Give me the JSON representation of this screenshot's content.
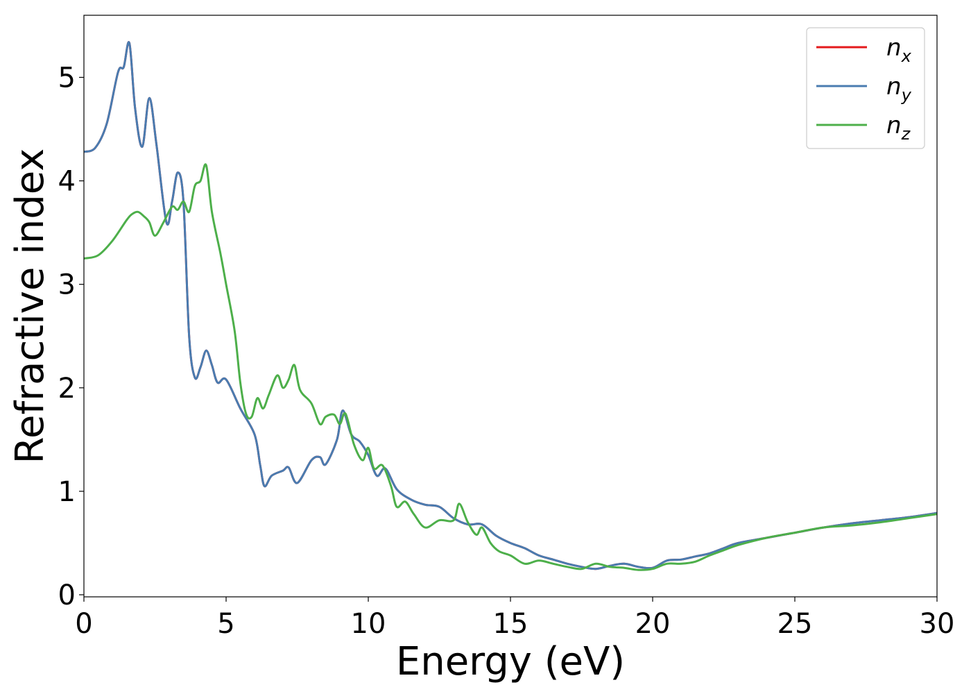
{
  "chart_data": {
    "type": "line",
    "xlabel": "Energy (eV)",
    "ylabel": "Refractive index",
    "xlim": [
      0,
      30
    ],
    "ylim": [
      -0.02,
      5.6
    ],
    "xticks": [
      0,
      5,
      10,
      15,
      20,
      25,
      30
    ],
    "yticks": [
      0,
      1,
      2,
      3,
      4,
      5
    ],
    "grid": false,
    "legend_position": "top-right",
    "series": [
      {
        "name": "n_x",
        "legend": {
          "base": "n",
          "sub": "x"
        },
        "color": "#e41a1c",
        "x": [
          0,
          0.4,
          0.8,
          1.2,
          1.4,
          1.6,
          1.8,
          2.05,
          2.3,
          2.55,
          2.9,
          3.1,
          3.3,
          3.5,
          3.7,
          3.9,
          4.1,
          4.3,
          4.5,
          4.7,
          5.0,
          5.5,
          6.0,
          6.2,
          6.35,
          6.6,
          7.0,
          7.2,
          7.5,
          8.0,
          8.3,
          8.5,
          8.9,
          9.1,
          9.4,
          9.7,
          10.0,
          10.3,
          10.6,
          11.0,
          11.5,
          12.0,
          12.5,
          13.0,
          13.5,
          14.0,
          14.5,
          15.0,
          15.5,
          16.0,
          16.5,
          17.0,
          17.5,
          18.0,
          18.5,
          19.0,
          19.5,
          20.0,
          20.5,
          21.0,
          21.5,
          22.0,
          22.5,
          23.0,
          24.0,
          25.0,
          26.0,
          27.0,
          28.0,
          29.0,
          30.0
        ],
        "y": [
          4.28,
          4.32,
          4.55,
          5.05,
          5.1,
          5.33,
          4.7,
          4.33,
          4.8,
          4.35,
          3.6,
          3.8,
          4.08,
          3.8,
          2.5,
          2.1,
          2.2,
          2.36,
          2.22,
          2.05,
          2.08,
          1.8,
          1.55,
          1.25,
          1.05,
          1.15,
          1.2,
          1.23,
          1.08,
          1.3,
          1.33,
          1.26,
          1.5,
          1.78,
          1.55,
          1.48,
          1.35,
          1.15,
          1.22,
          1.02,
          0.92,
          0.87,
          0.85,
          0.74,
          0.68,
          0.68,
          0.57,
          0.5,
          0.45,
          0.38,
          0.34,
          0.3,
          0.27,
          0.25,
          0.28,
          0.3,
          0.27,
          0.26,
          0.33,
          0.34,
          0.37,
          0.4,
          0.45,
          0.5,
          0.55,
          0.6,
          0.65,
          0.69,
          0.72,
          0.75,
          0.79
        ]
      },
      {
        "name": "n_y",
        "legend": {
          "base": "n",
          "sub": "y"
        },
        "color": "#4a7cb0",
        "x": [
          0,
          0.4,
          0.8,
          1.2,
          1.4,
          1.6,
          1.8,
          2.05,
          2.3,
          2.55,
          2.9,
          3.1,
          3.3,
          3.5,
          3.7,
          3.9,
          4.1,
          4.3,
          4.5,
          4.7,
          5.0,
          5.5,
          6.0,
          6.2,
          6.35,
          6.6,
          7.0,
          7.2,
          7.5,
          8.0,
          8.3,
          8.5,
          8.9,
          9.1,
          9.4,
          9.7,
          10.0,
          10.3,
          10.6,
          11.0,
          11.5,
          12.0,
          12.5,
          13.0,
          13.5,
          14.0,
          14.5,
          15.0,
          15.5,
          16.0,
          16.5,
          17.0,
          17.5,
          18.0,
          18.5,
          19.0,
          19.5,
          20.0,
          20.5,
          21.0,
          21.5,
          22.0,
          22.5,
          23.0,
          24.0,
          25.0,
          26.0,
          27.0,
          28.0,
          29.0,
          30.0
        ],
        "y": [
          4.28,
          4.32,
          4.55,
          5.05,
          5.1,
          5.33,
          4.7,
          4.33,
          4.8,
          4.35,
          3.6,
          3.8,
          4.08,
          3.8,
          2.5,
          2.1,
          2.2,
          2.36,
          2.22,
          2.05,
          2.08,
          1.8,
          1.55,
          1.25,
          1.05,
          1.15,
          1.2,
          1.23,
          1.08,
          1.3,
          1.33,
          1.26,
          1.5,
          1.78,
          1.55,
          1.48,
          1.35,
          1.15,
          1.22,
          1.02,
          0.92,
          0.87,
          0.85,
          0.74,
          0.68,
          0.68,
          0.57,
          0.5,
          0.45,
          0.38,
          0.34,
          0.3,
          0.27,
          0.25,
          0.28,
          0.3,
          0.27,
          0.26,
          0.33,
          0.34,
          0.37,
          0.4,
          0.45,
          0.5,
          0.55,
          0.6,
          0.65,
          0.69,
          0.72,
          0.75,
          0.79
        ]
      },
      {
        "name": "n_z",
        "legend": {
          "base": "n",
          "sub": "z"
        },
        "color": "#4daf4a",
        "x": [
          0,
          0.5,
          1.0,
          1.5,
          1.7,
          1.9,
          2.1,
          2.3,
          2.5,
          2.8,
          3.1,
          3.3,
          3.5,
          3.7,
          3.9,
          4.1,
          4.3,
          4.5,
          4.8,
          5.0,
          5.3,
          5.5,
          5.7,
          5.9,
          6.1,
          6.3,
          6.5,
          6.8,
          7.0,
          7.2,
          7.4,
          7.6,
          8.0,
          8.3,
          8.5,
          8.8,
          9.0,
          9.2,
          9.5,
          9.8,
          10.0,
          10.2,
          10.5,
          10.8,
          11.0,
          11.3,
          11.6,
          12.0,
          12.5,
          13.0,
          13.2,
          13.5,
          13.8,
          14.0,
          14.3,
          14.6,
          15.0,
          15.5,
          16.0,
          16.5,
          17.0,
          17.5,
          18.0,
          18.5,
          19.0,
          19.5,
          20.0,
          20.5,
          21.0,
          21.5,
          22.0,
          22.5,
          23.0,
          24.0,
          25.0,
          26.0,
          27.0,
          28.0,
          29.0,
          30.0
        ],
        "y": [
          3.25,
          3.28,
          3.42,
          3.62,
          3.68,
          3.7,
          3.66,
          3.6,
          3.47,
          3.6,
          3.75,
          3.72,
          3.8,
          3.7,
          3.95,
          4.0,
          4.15,
          3.7,
          3.3,
          3.0,
          2.55,
          2.05,
          1.75,
          1.72,
          1.9,
          1.8,
          1.93,
          2.12,
          2.0,
          2.08,
          2.22,
          1.98,
          1.85,
          1.65,
          1.72,
          1.74,
          1.65,
          1.75,
          1.45,
          1.3,
          1.42,
          1.22,
          1.25,
          1.05,
          0.85,
          0.9,
          0.78,
          0.65,
          0.72,
          0.72,
          0.88,
          0.7,
          0.58,
          0.65,
          0.5,
          0.42,
          0.38,
          0.3,
          0.33,
          0.3,
          0.27,
          0.25,
          0.3,
          0.27,
          0.26,
          0.24,
          0.25,
          0.3,
          0.3,
          0.32,
          0.38,
          0.43,
          0.48,
          0.55,
          0.6,
          0.65,
          0.67,
          0.7,
          0.74,
          0.78
        ]
      }
    ]
  }
}
